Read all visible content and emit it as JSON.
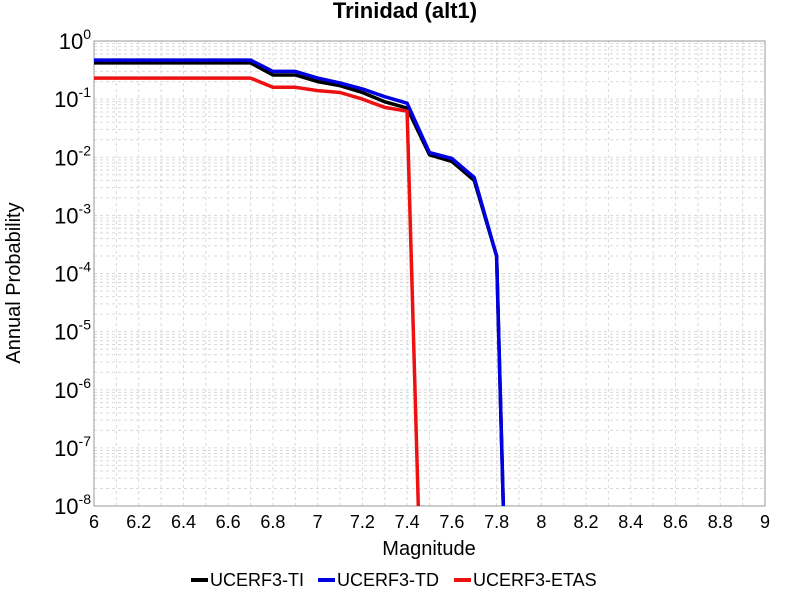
{
  "chart_data": {
    "type": "line",
    "title": "Trinidad (alt1)",
    "xlabel": "Magnitude",
    "ylabel": "Annual Probability",
    "xlim": [
      6,
      9
    ],
    "ylim": [
      1e-08,
      1
    ],
    "yscale": "log",
    "grid": true,
    "legend_position": "bottom",
    "x_ticks": [
      "6",
      "6.2",
      "6.4",
      "6.6",
      "6.8",
      "7",
      "7.2",
      "7.4",
      "7.6",
      "7.8",
      "8",
      "8.2",
      "8.4",
      "8.6",
      "8.8",
      "9"
    ],
    "y_ticks": [
      {
        "base": "10",
        "exp": "0"
      },
      {
        "base": "10",
        "exp": "-1"
      },
      {
        "base": "10",
        "exp": "-2"
      },
      {
        "base": "10",
        "exp": "-3"
      },
      {
        "base": "10",
        "exp": "-4"
      },
      {
        "base": "10",
        "exp": "-5"
      },
      {
        "base": "10",
        "exp": "-6"
      },
      {
        "base": "10",
        "exp": "-7"
      },
      {
        "base": "10",
        "exp": "-8"
      }
    ],
    "series": [
      {
        "name": "UCERF3-TI",
        "color": "#000000",
        "x": [
          6.0,
          6.7,
          6.8,
          6.9,
          7.0,
          7.1,
          7.2,
          7.3,
          7.4,
          7.5,
          7.6,
          7.7,
          7.8,
          7.83
        ],
        "y": [
          0.42,
          0.42,
          0.26,
          0.26,
          0.2,
          0.17,
          0.13,
          0.09,
          0.07,
          0.011,
          0.0085,
          0.004,
          0.0002,
          1e-08
        ]
      },
      {
        "name": "UCERF3-TD",
        "color": "#0000e0",
        "x": [
          6.0,
          6.7,
          6.8,
          6.9,
          7.0,
          7.1,
          7.2,
          7.3,
          7.4,
          7.5,
          7.6,
          7.7,
          7.8,
          7.83
        ],
        "y": [
          0.47,
          0.47,
          0.3,
          0.3,
          0.23,
          0.19,
          0.15,
          0.11,
          0.085,
          0.012,
          0.0095,
          0.0045,
          0.0002,
          1e-08
        ]
      },
      {
        "name": "UCERF3-ETAS",
        "color": "#ee1111",
        "x": [
          6.0,
          6.7,
          6.8,
          6.9,
          7.0,
          7.1,
          7.2,
          7.3,
          7.4,
          7.45
        ],
        "y": [
          0.23,
          0.23,
          0.16,
          0.16,
          0.14,
          0.13,
          0.1,
          0.072,
          0.062,
          1e-08
        ]
      }
    ]
  }
}
